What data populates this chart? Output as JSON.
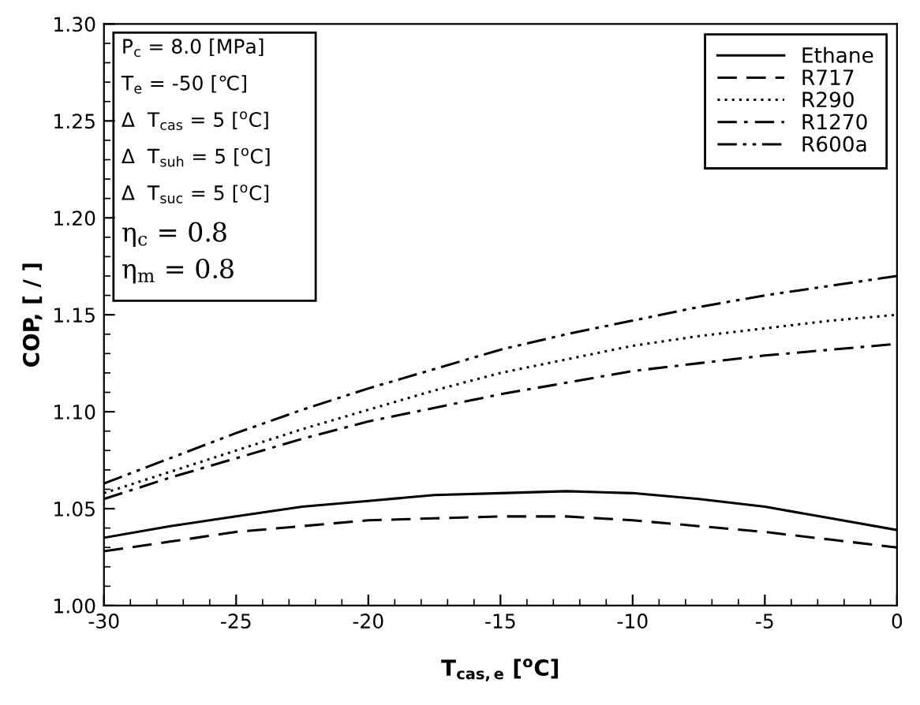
{
  "chart_data": {
    "type": "line",
    "xlabel": "T$_{cas,e}$ [$^{o}$C]",
    "ylabel": "COP, [ / ]",
    "x": [
      -30,
      -27.5,
      -25,
      -22.5,
      -20,
      -17.5,
      -15,
      -12.5,
      -10,
      -7.5,
      -5,
      -2.5,
      0
    ],
    "series": [
      {
        "name": "Ethane",
        "color": "#000000",
        "line_style": "solid",
        "values": [
          1.035,
          1.041,
          1.046,
          1.051,
          1.054,
          1.057,
          1.058,
          1.059,
          1.058,
          1.055,
          1.051,
          1.045,
          1.039
        ]
      },
      {
        "name": "R717",
        "color": "#000000",
        "line_style": "dashed",
        "values": [
          1.028,
          1.033,
          1.038,
          1.041,
          1.044,
          1.045,
          1.046,
          1.046,
          1.044,
          1.041,
          1.038,
          1.034,
          1.03
        ]
      },
      {
        "name": "R290",
        "color": "#000000",
        "line_style": "dotted",
        "values": [
          1.058,
          1.069,
          1.08,
          1.091,
          1.101,
          1.111,
          1.12,
          1.127,
          1.134,
          1.139,
          1.143,
          1.147,
          1.15
        ]
      },
      {
        "name": "R1270",
        "color": "#000000",
        "line_style": "dashdot",
        "values": [
          1.055,
          1.066,
          1.076,
          1.086,
          1.095,
          1.102,
          1.109,
          1.115,
          1.121,
          1.125,
          1.129,
          1.132,
          1.135
        ]
      },
      {
        "name": "R600a",
        "color": "#000000",
        "line_style": "dashdotdot",
        "values": [
          1.063,
          1.076,
          1.089,
          1.101,
          1.112,
          1.122,
          1.132,
          1.14,
          1.147,
          1.154,
          1.16,
          1.165,
          1.17
        ]
      }
    ],
    "xlim": [
      -30,
      0
    ],
    "ylim": [
      1.0,
      1.3
    ],
    "xticks": [
      {
        "value": -30,
        "label": "-30"
      },
      {
        "value": -25,
        "label": "-25"
      },
      {
        "value": -20,
        "label": "-20"
      },
      {
        "value": -15,
        "label": "-15"
      },
      {
        "value": -10,
        "label": "-10"
      },
      {
        "value": -5,
        "label": "-5"
      },
      0
    ],
    "yticks": [
      {
        "value": 1.0,
        "label": "1.00"
      },
      {
        "value": 1.05,
        "label": "1.05"
      },
      {
        "value": 1.1,
        "label": "1.10"
      },
      {
        "value": 1.15,
        "label": "1.15"
      },
      {
        "value": 1.2,
        "label": "1.20"
      },
      {
        "value": 1.25,
        "label": "1.25"
      },
      {
        "value": 1.3,
        "label": "1.30"
      }
    ],
    "grid": false,
    "legend": "top right",
    "marker": "none",
    "annotations": [
      "P$_{c}$ = 8.0 [MPa]",
      "T$_{e}$ = -50 [℃]",
      "Δ  T$_{cas}$ = 5 [$^{o}$C]",
      "Δ  T$_{suh}$ = 5 [$^{o}$C]",
      "Δ  T$_{suc}$ = 5 [$^{o}$C]",
      "η$_{c}$ = 0.8",
      "η$_{m}$ = 0.8"
    ]
  }
}
